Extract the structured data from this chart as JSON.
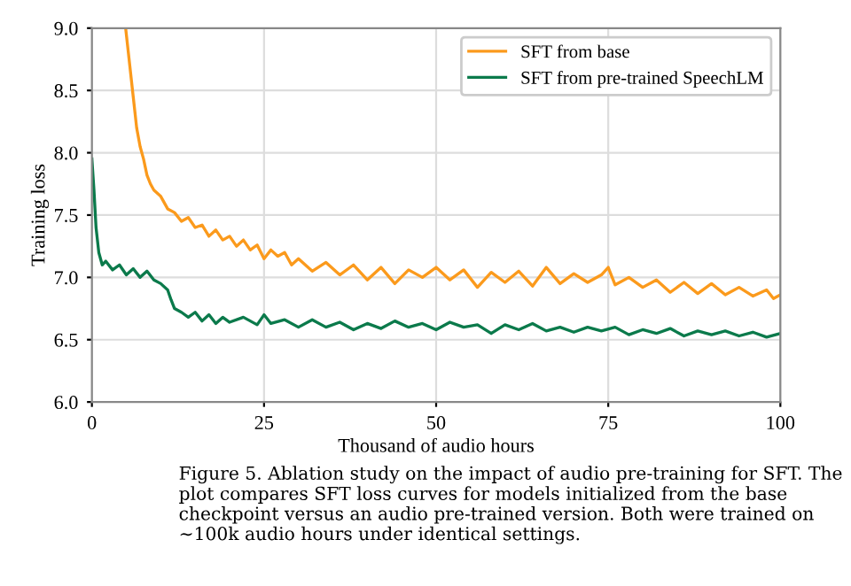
{
  "chart_data": {
    "type": "line",
    "xlabel": "Thousand of audio hours",
    "ylabel": "Training loss",
    "xlim": [
      0,
      100
    ],
    "xticks": [
      0,
      25,
      50,
      75,
      100
    ],
    "ylim": [
      6.0,
      9.0
    ],
    "yticks": [
      {
        "value": 6.0,
        "label": "6.0"
      },
      {
        "value": 6.5,
        "label": "6.5"
      },
      {
        "value": 7.0,
        "label": "7.0"
      },
      {
        "value": 7.5,
        "label": "7.5"
      },
      {
        "value": 8.0,
        "label": "8.0"
      },
      {
        "value": 8.5,
        "label": "8.5"
      },
      {
        "value": 9.0,
        "label": "9.0"
      }
    ],
    "grid": true,
    "legend": "top right",
    "line_style": "solid",
    "series": [
      {
        "name": "SFT from base",
        "color": "#fb9a1c",
        "x": [
          4.9,
          5.5,
          6,
          6.5,
          7,
          7.5,
          8,
          8.5,
          9,
          10,
          11,
          12,
          13,
          14,
          15,
          16,
          17,
          18,
          19,
          20,
          21,
          22,
          23,
          24,
          25,
          26,
          27,
          28,
          29,
          30,
          32,
          34,
          36,
          38,
          40,
          42,
          44,
          46,
          48,
          50,
          52,
          54,
          56,
          58,
          60,
          62,
          64,
          66,
          68,
          70,
          72,
          74,
          75,
          76,
          78,
          80,
          82,
          84,
          86,
          88,
          90,
          92,
          94,
          96,
          98,
          99,
          100
        ],
        "values": [
          9.0,
          8.7,
          8.45,
          8.2,
          8.05,
          7.95,
          7.82,
          7.75,
          7.7,
          7.65,
          7.55,
          7.52,
          7.45,
          7.48,
          7.4,
          7.42,
          7.33,
          7.38,
          7.3,
          7.33,
          7.25,
          7.3,
          7.22,
          7.26,
          7.15,
          7.22,
          7.17,
          7.2,
          7.1,
          7.15,
          7.05,
          7.12,
          7.02,
          7.1,
          6.98,
          7.08,
          6.95,
          7.06,
          7.0,
          7.08,
          6.98,
          7.06,
          6.92,
          7.04,
          6.96,
          7.05,
          6.93,
          7.08,
          6.95,
          7.03,
          6.96,
          7.02,
          7.08,
          6.94,
          7.0,
          6.92,
          6.98,
          6.88,
          6.96,
          6.87,
          6.95,
          6.86,
          6.92,
          6.85,
          6.9,
          6.83,
          6.86
        ]
      },
      {
        "name": "SFT from pre-trained SpeechLM",
        "color": "#0b7a4b",
        "x": [
          0,
          0.3,
          0.6,
          1,
          1.5,
          2,
          3,
          4,
          5,
          6,
          7,
          8,
          9,
          10,
          11,
          11.5,
          12,
          13,
          14,
          15,
          16,
          17,
          18,
          19,
          20,
          22,
          24,
          25,
          26,
          28,
          30,
          32,
          34,
          36,
          38,
          40,
          42,
          44,
          46,
          48,
          50,
          52,
          54,
          56,
          58,
          60,
          62,
          64,
          66,
          68,
          70,
          72,
          74,
          76,
          78,
          80,
          82,
          84,
          86,
          88,
          90,
          92,
          94,
          96,
          98,
          100
        ],
        "values": [
          7.95,
          7.7,
          7.4,
          7.2,
          7.1,
          7.13,
          7.06,
          7.1,
          7.02,
          7.07,
          7.0,
          7.05,
          6.98,
          6.95,
          6.9,
          6.82,
          6.75,
          6.72,
          6.68,
          6.72,
          6.65,
          6.7,
          6.63,
          6.68,
          6.64,
          6.68,
          6.62,
          6.7,
          6.63,
          6.66,
          6.6,
          6.66,
          6.6,
          6.64,
          6.58,
          6.63,
          6.59,
          6.65,
          6.6,
          6.63,
          6.58,
          6.64,
          6.6,
          6.62,
          6.55,
          6.62,
          6.58,
          6.63,
          6.57,
          6.6,
          6.56,
          6.6,
          6.57,
          6.6,
          6.54,
          6.58,
          6.55,
          6.59,
          6.53,
          6.57,
          6.54,
          6.57,
          6.53,
          6.56,
          6.52,
          6.55
        ]
      }
    ],
    "annotations": [
      "Figure 5. Ablation study on the impact of audio pre-training for SFT. The plot compares SFT loss curves for models initialized from the base checkpoint versus an audio pre-trained version. Both were trained on ∼100k audio hours under identical settings."
    ]
  }
}
